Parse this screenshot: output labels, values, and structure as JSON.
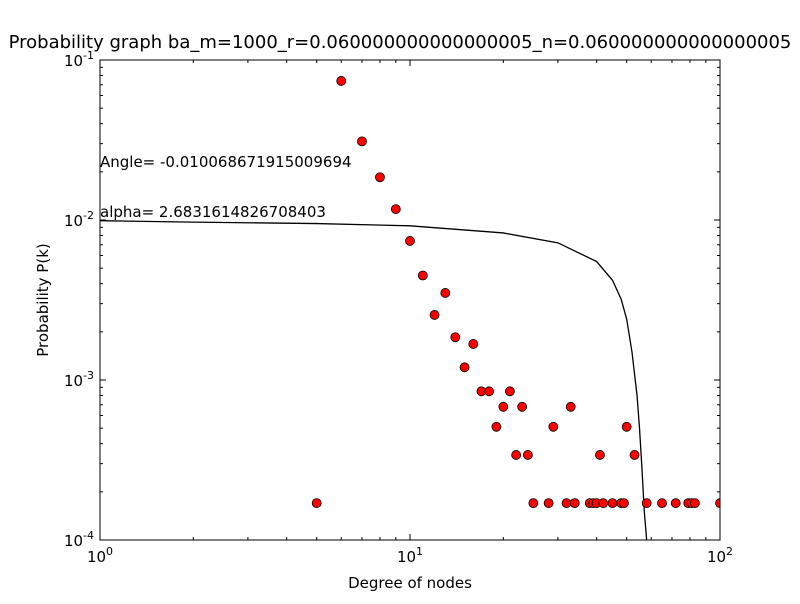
{
  "chart_data": {
    "type": "scatter",
    "title": "Probability graph ba_m=1000_r=0.060000000000000005_n=0.060000000000000005",
    "xlabel": "Degree of nodes",
    "ylabel": "Probability P(k)",
    "xscale": "log",
    "yscale": "log",
    "xlim": [
      1,
      100
    ],
    "ylim": [
      0.0001,
      0.1
    ],
    "x_ticks": [
      {
        "value": 1,
        "base": "10",
        "exp": "0"
      },
      {
        "value": 10,
        "base": "10",
        "exp": "1"
      },
      {
        "value": 100,
        "base": "10",
        "exp": "2"
      }
    ],
    "y_ticks": [
      {
        "value": 0.0001,
        "base": "10",
        "exp": "-4"
      },
      {
        "value": 0.001,
        "base": "10",
        "exp": "-3"
      },
      {
        "value": 0.01,
        "base": "10",
        "exp": "-2"
      },
      {
        "value": 0.1,
        "base": "10",
        "exp": "-1"
      }
    ],
    "annotations": {
      "angle": "Angle= -0.010068671915009694",
      "alpha": "alpha= 2.6831614826708403"
    },
    "marker_color": "#ff0000",
    "line_color": "#000000",
    "series": [
      {
        "type": "scatter",
        "x": [
          5,
          6,
          7,
          8,
          9,
          10,
          11,
          12,
          13,
          14,
          15,
          16,
          17,
          18,
          19,
          20,
          21,
          22,
          23,
          24,
          25,
          28,
          29,
          32,
          33,
          34,
          38,
          39,
          40,
          41,
          42,
          45,
          48,
          49,
          50,
          53,
          58,
          65,
          72,
          79,
          81,
          83,
          100
        ],
        "y": [
          0.00017,
          0.074,
          0.031,
          0.0185,
          0.0117,
          0.0074,
          0.0045,
          0.00255,
          0.0035,
          0.00185,
          0.0012,
          0.00168,
          0.00085,
          0.00085,
          0.00051,
          0.00068,
          0.00085,
          0.00034,
          0.00068,
          0.00034,
          0.00017,
          0.00017,
          0.00051,
          0.00017,
          0.00068,
          0.00017,
          0.00017,
          0.00017,
          0.00017,
          0.00034,
          0.00017,
          0.00017,
          0.00017,
          0.00017,
          0.00051,
          0.00034,
          0.00017,
          0.00017,
          0.00017,
          0.00017,
          0.00017,
          0.00017,
          0.00017
        ]
      },
      {
        "type": "line",
        "x": [
          1,
          2,
          5,
          10,
          20,
          30,
          40,
          45,
          48,
          50,
          52,
          54,
          55,
          56,
          57,
          58
        ],
        "y": [
          0.0099,
          0.0097,
          0.0095,
          0.0092,
          0.0083,
          0.0072,
          0.0055,
          0.0042,
          0.0032,
          0.0024,
          0.0015,
          0.0008,
          0.0005,
          0.00028,
          0.00015,
          0.0001
        ]
      }
    ]
  }
}
